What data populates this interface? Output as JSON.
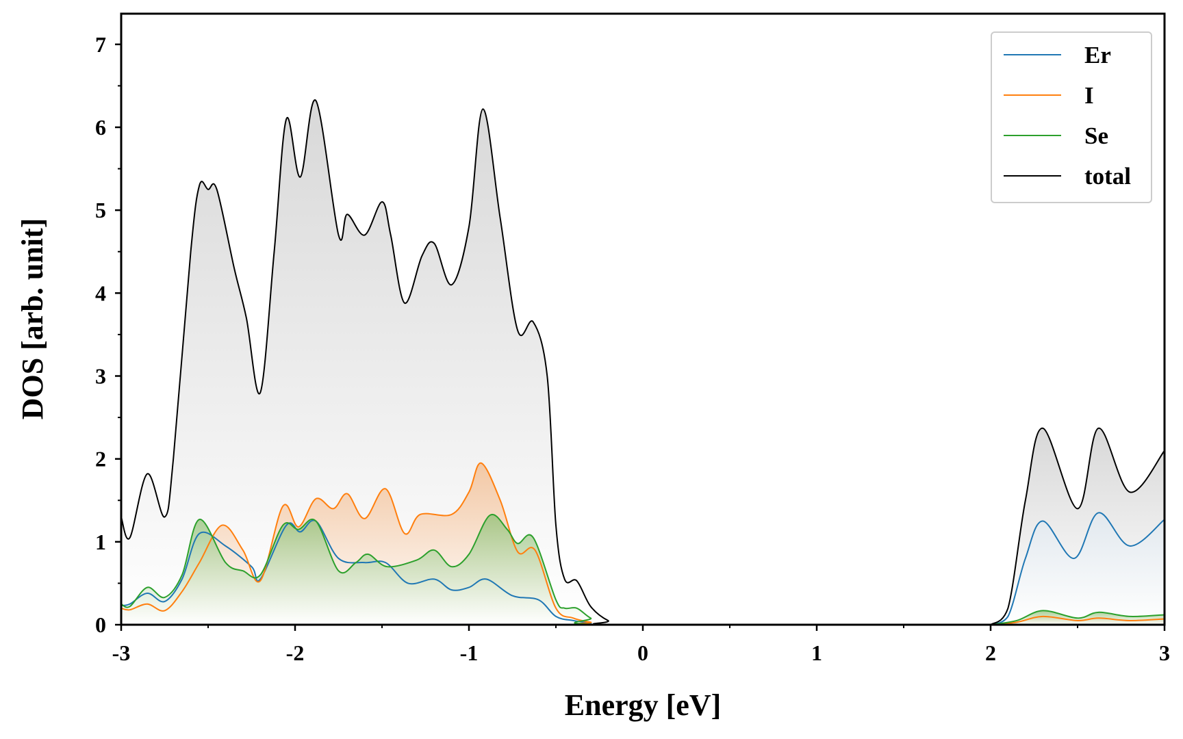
{
  "chart_data": {
    "type": "line",
    "title": "",
    "xlabel": "Energy [eV]",
    "ylabel": "DOS [arb. unit]",
    "xlim": [
      -3,
      3
    ],
    "ylim": [
      0,
      7.37
    ],
    "xticks": [
      -3,
      -2,
      -1,
      0,
      1,
      2,
      3
    ],
    "xtick_labels": [
      "-3",
      "-2",
      "-1",
      "0",
      "1",
      "2",
      "3"
    ],
    "yticks": [
      0,
      1,
      2,
      3,
      4,
      5,
      6,
      7
    ],
    "ytick_labels": [
      "0",
      "1",
      "2",
      "3",
      "4",
      "5",
      "6",
      "7"
    ],
    "grid": false,
    "legend_position": "top-right",
    "series": [
      {
        "name": "Er",
        "color": "#1f77b4",
        "fill": "#1f77b4",
        "segments": [
          [
            [
              -3,
              0.23
            ],
            [
              -2.95,
              0.25
            ],
            [
              -2.85,
              0.38
            ],
            [
              -2.75,
              0.28
            ],
            [
              -2.65,
              0.55
            ],
            [
              -2.55,
              1.1
            ],
            [
              -2.4,
              0.95
            ],
            [
              -2.25,
              0.7
            ],
            [
              -2.2,
              0.55
            ],
            [
              -2.05,
              1.2
            ],
            [
              -1.97,
              1.12
            ],
            [
              -1.88,
              1.25
            ],
            [
              -1.75,
              0.8
            ],
            [
              -1.6,
              0.75
            ],
            [
              -1.48,
              0.75
            ],
            [
              -1.35,
              0.5
            ],
            [
              -1.2,
              0.55
            ],
            [
              -1.1,
              0.42
            ],
            [
              -1.0,
              0.45
            ],
            [
              -0.9,
              0.55
            ],
            [
              -0.75,
              0.35
            ],
            [
              -0.6,
              0.3
            ],
            [
              -0.5,
              0.1
            ],
            [
              -0.4,
              0.05
            ],
            [
              -0.3,
              0.02
            ],
            [
              -0.2,
              0.0
            ],
            [
              2.0,
              0.0
            ]
          ],
          [
            [
              2.0,
              0.0
            ],
            [
              2.1,
              0.1
            ],
            [
              2.2,
              0.8
            ],
            [
              2.3,
              1.25
            ],
            [
              2.48,
              0.8
            ],
            [
              2.62,
              1.35
            ],
            [
              2.8,
              0.95
            ],
            [
              3.0,
              1.27
            ]
          ]
        ]
      },
      {
        "name": "I",
        "color": "#ff7f0e",
        "fill": "#ff7f0e",
        "segments": [
          [
            [
              -3,
              0.2
            ],
            [
              -2.95,
              0.18
            ],
            [
              -2.85,
              0.25
            ],
            [
              -2.75,
              0.17
            ],
            [
              -2.65,
              0.4
            ],
            [
              -2.55,
              0.75
            ],
            [
              -2.42,
              1.2
            ],
            [
              -2.3,
              0.9
            ],
            [
              -2.2,
              0.53
            ],
            [
              -2.07,
              1.43
            ],
            [
              -1.98,
              1.18
            ],
            [
              -1.88,
              1.52
            ],
            [
              -1.78,
              1.4
            ],
            [
              -1.7,
              1.58
            ],
            [
              -1.6,
              1.28
            ],
            [
              -1.48,
              1.64
            ],
            [
              -1.37,
              1.1
            ],
            [
              -1.28,
              1.33
            ],
            [
              -1.1,
              1.33
            ],
            [
              -1.0,
              1.6
            ],
            [
              -0.93,
              1.95
            ],
            [
              -0.82,
              1.5
            ],
            [
              -0.72,
              0.88
            ],
            [
              -0.62,
              0.9
            ],
            [
              -0.5,
              0.2
            ],
            [
              -0.4,
              0.08
            ],
            [
              -0.3,
              0.03
            ],
            [
              -0.2,
              0.0
            ],
            [
              2.0,
              0.0
            ]
          ],
          [
            [
              2.0,
              0.0
            ],
            [
              2.15,
              0.03
            ],
            [
              2.3,
              0.1
            ],
            [
              2.5,
              0.05
            ],
            [
              2.62,
              0.08
            ],
            [
              2.8,
              0.05
            ],
            [
              3.0,
              0.07
            ]
          ]
        ]
      },
      {
        "name": "Se",
        "color": "#2ca02c",
        "fill": "#2ca02c",
        "segments": [
          [
            [
              -3,
              0.25
            ],
            [
              -2.95,
              0.22
            ],
            [
              -2.85,
              0.45
            ],
            [
              -2.75,
              0.33
            ],
            [
              -2.65,
              0.6
            ],
            [
              -2.55,
              1.27
            ],
            [
              -2.4,
              0.75
            ],
            [
              -2.3,
              0.65
            ],
            [
              -2.2,
              0.6
            ],
            [
              -2.07,
              1.2
            ],
            [
              -1.98,
              1.15
            ],
            [
              -1.88,
              1.25
            ],
            [
              -1.75,
              0.65
            ],
            [
              -1.65,
              0.75
            ],
            [
              -1.58,
              0.85
            ],
            [
              -1.47,
              0.7
            ],
            [
              -1.3,
              0.78
            ],
            [
              -1.2,
              0.9
            ],
            [
              -1.1,
              0.7
            ],
            [
              -1.0,
              0.85
            ],
            [
              -0.88,
              1.32
            ],
            [
              -0.78,
              1.15
            ],
            [
              -0.72,
              0.98
            ],
            [
              -0.63,
              1.05
            ],
            [
              -0.5,
              0.3
            ],
            [
              -0.45,
              0.2
            ],
            [
              -0.38,
              0.2
            ],
            [
              -0.3,
              0.08
            ],
            [
              -0.2,
              0.0
            ],
            [
              2.0,
              0.0
            ]
          ],
          [
            [
              2.0,
              0.0
            ],
            [
              2.15,
              0.05
            ],
            [
              2.3,
              0.17
            ],
            [
              2.5,
              0.08
            ],
            [
              2.62,
              0.15
            ],
            [
              2.8,
              0.1
            ],
            [
              3.0,
              0.12
            ]
          ]
        ]
      },
      {
        "name": "total",
        "color": "#000000",
        "fill": "#b0b0b0",
        "segments": [
          [
            [
              -3,
              1.3
            ],
            [
              -2.95,
              1.05
            ],
            [
              -2.85,
              1.82
            ],
            [
              -2.75,
              1.3
            ],
            [
              -2.7,
              2.0
            ],
            [
              -2.6,
              4.5
            ],
            [
              -2.55,
              5.3
            ],
            [
              -2.5,
              5.25
            ],
            [
              -2.45,
              5.25
            ],
            [
              -2.35,
              4.3
            ],
            [
              -2.28,
              3.7
            ],
            [
              -2.2,
              2.8
            ],
            [
              -2.12,
              4.5
            ],
            [
              -2.05,
              6.1
            ],
            [
              -1.97,
              5.4
            ],
            [
              -1.88,
              6.32
            ],
            [
              -1.75,
              4.7
            ],
            [
              -1.7,
              4.95
            ],
            [
              -1.6,
              4.7
            ],
            [
              -1.5,
              5.1
            ],
            [
              -1.45,
              4.7
            ],
            [
              -1.37,
              3.88
            ],
            [
              -1.27,
              4.45
            ],
            [
              -1.2,
              4.6
            ],
            [
              -1.1,
              4.1
            ],
            [
              -1.0,
              4.8
            ],
            [
              -0.92,
              6.22
            ],
            [
              -0.82,
              4.9
            ],
            [
              -0.72,
              3.55
            ],
            [
              -0.63,
              3.65
            ],
            [
              -0.55,
              3.0
            ],
            [
              -0.5,
              1.2
            ],
            [
              -0.45,
              0.55
            ],
            [
              -0.38,
              0.53
            ],
            [
              -0.3,
              0.22
            ],
            [
              -0.2,
              0.05
            ],
            [
              -0.1,
              0.0
            ],
            [
              2.0,
              0.0
            ]
          ],
          [
            [
              2.0,
              0.0
            ],
            [
              2.1,
              0.2
            ],
            [
              2.2,
              1.5
            ],
            [
              2.3,
              2.37
            ],
            [
              2.5,
              1.4
            ],
            [
              2.62,
              2.37
            ],
            [
              2.8,
              1.6
            ],
            [
              3.0,
              2.1
            ]
          ]
        ]
      }
    ]
  }
}
